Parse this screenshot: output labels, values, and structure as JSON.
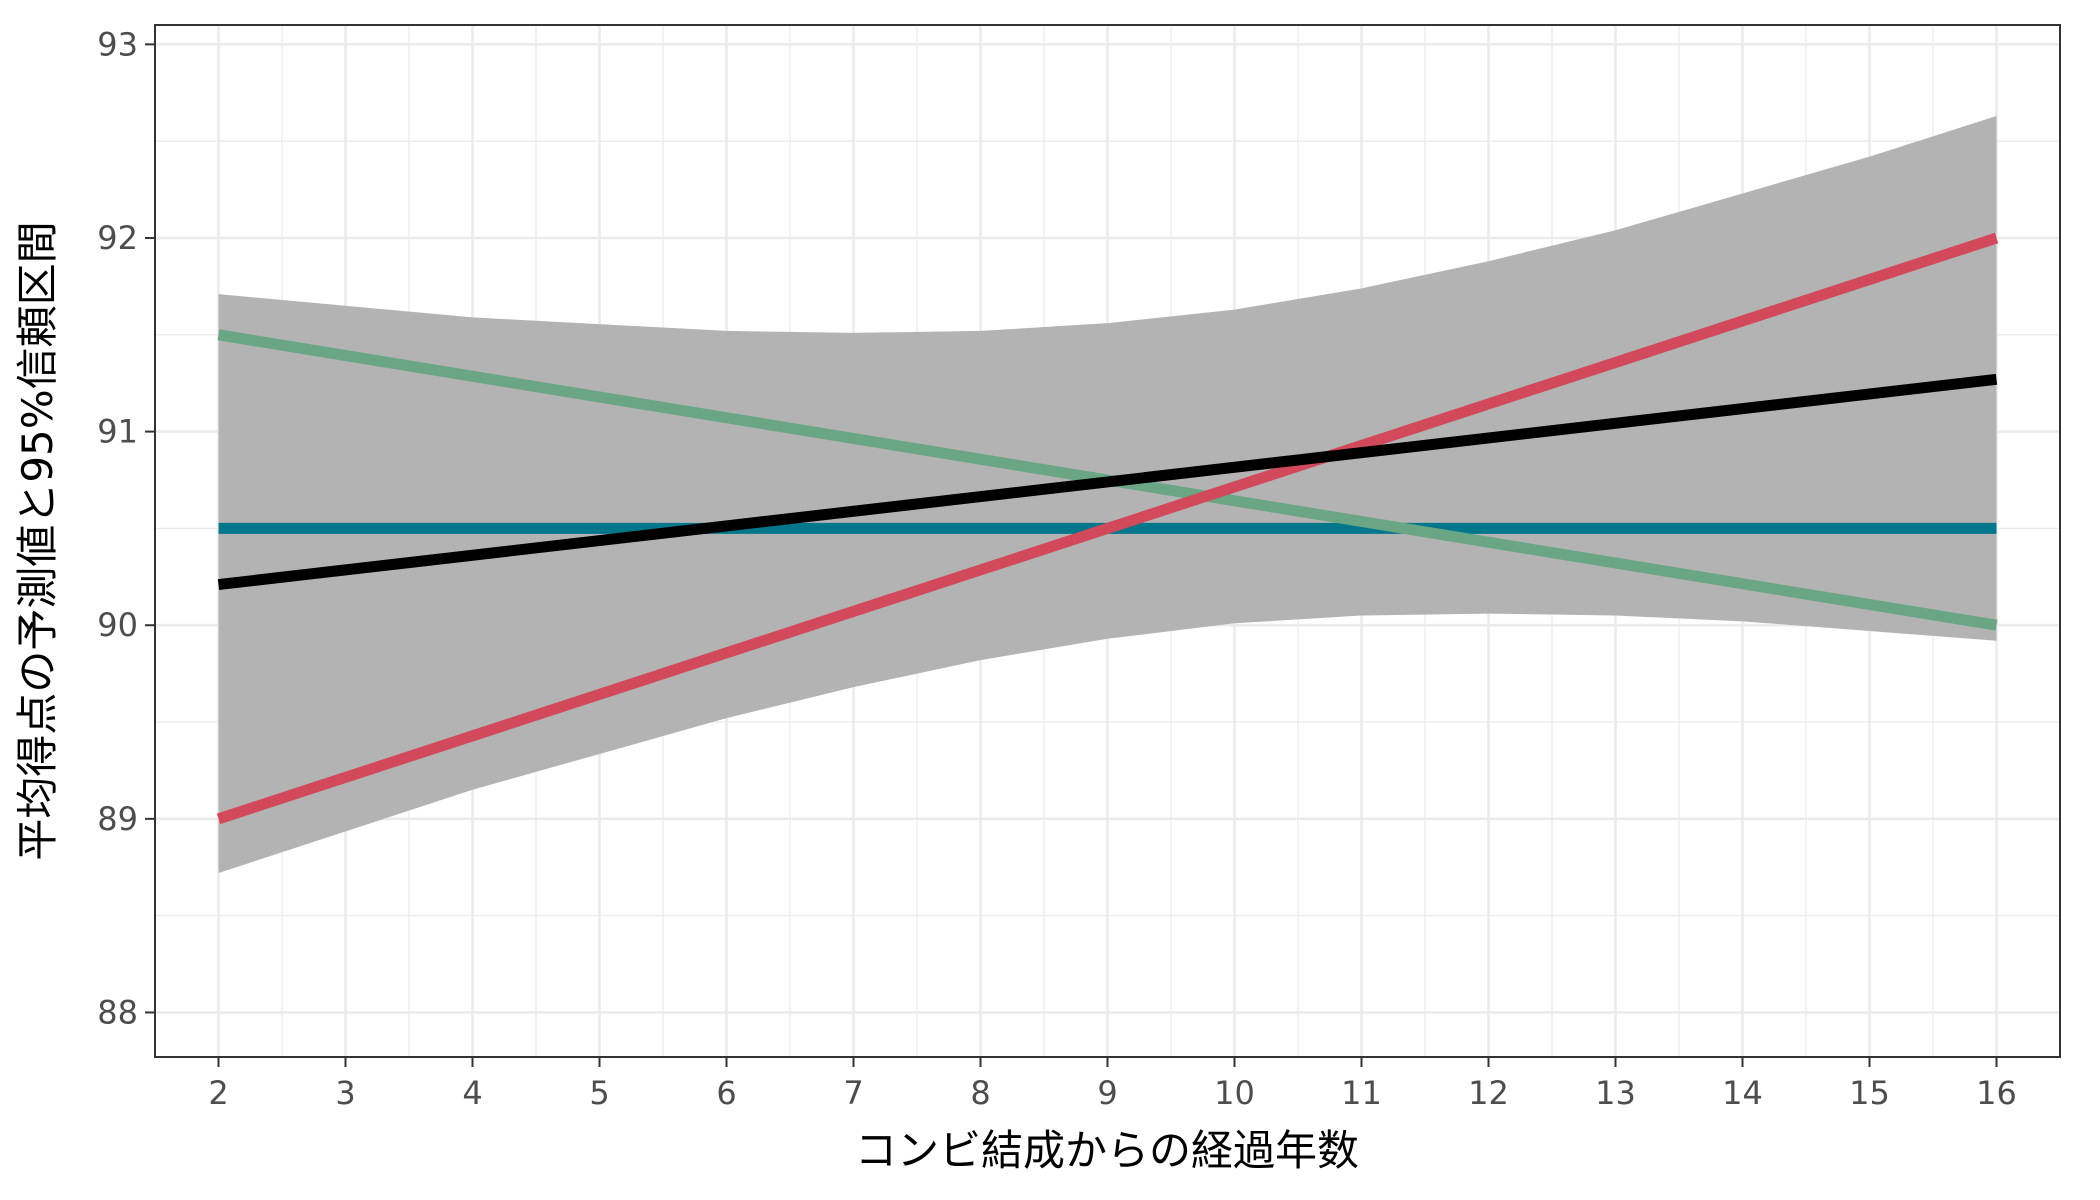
{
  "chart_data": {
    "type": "line",
    "title": "",
    "xlabel": "コンビ結成からの経過年数",
    "ylabel": "平均得点の予測値と95%信頼区間",
    "xlim": [
      1.5,
      16.5
    ],
    "ylim": [
      87.77,
      93.1
    ],
    "x_ticks": [
      2,
      3,
      4,
      5,
      6,
      7,
      8,
      9,
      10,
      11,
      12,
      13,
      14,
      15,
      16
    ],
    "y_ticks": [
      88,
      89,
      90,
      91,
      92,
      93
    ],
    "grid": true,
    "legend": "none",
    "ribbon": {
      "color": "#b3b3b3",
      "x": [
        2,
        4,
        6,
        7,
        8,
        9,
        10,
        11,
        12,
        13,
        14,
        15,
        16
      ],
      "upper": [
        91.71,
        91.59,
        91.52,
        91.51,
        91.52,
        91.56,
        91.63,
        91.74,
        91.88,
        92.04,
        92.23,
        92.42,
        92.63
      ],
      "lower": [
        88.72,
        89.15,
        89.52,
        89.68,
        89.82,
        89.93,
        90.01,
        90.05,
        90.06,
        90.05,
        90.02,
        89.97,
        89.92
      ]
    },
    "series": [
      {
        "color": "#00778b",
        "x": [
          2,
          16
        ],
        "values": [
          90.5,
          90.5
        ]
      },
      {
        "color": "#6aa584",
        "x": [
          2,
          16
        ],
        "values": [
          91.5,
          90.0
        ]
      },
      {
        "color": "#d1495b",
        "x": [
          2,
          16
        ],
        "values": [
          89.0,
          92.0
        ]
      },
      {
        "color": "#000000",
        "x": [
          2,
          16
        ],
        "values": [
          90.21,
          91.27
        ]
      }
    ]
  }
}
